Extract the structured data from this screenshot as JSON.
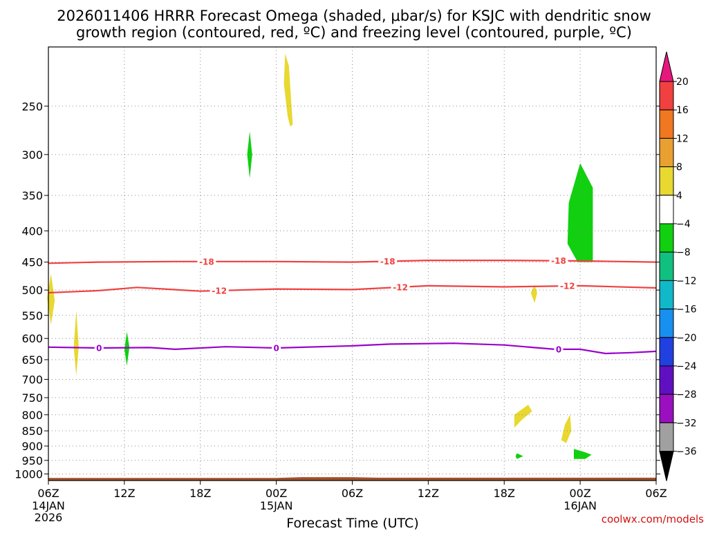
{
  "title_line1": "2026011406 HRRR Forecast Omega (shaded, μbar/s) for KSJC with dendritic snow",
  "title_line2": "growth region (contoured, red, ºC) and freezing level (contoured, purple, ºC)",
  "credit": "coolwx.com/models",
  "colors": {
    "temp_contour": "#f04040",
    "freezing_contour": "#9900cc",
    "terrain": "#a0522d",
    "grid": "#888888"
  },
  "chart_data": {
    "type": "heatmap",
    "title": "2026011406 HRRR Forecast Omega (shaded, μbar/s) for KSJC with dendritic snow growth region (contoured, red, ºC) and freezing level (contoured, purple, ºC)",
    "xlabel": "Forecast Time (UTC)",
    "x_unit": "forecast hour from 2026-01-14 06Z",
    "xlim": [
      0,
      48
    ],
    "x_ticks": [
      {
        "hour": 0,
        "label": "06Z",
        "sub1": "14JAN",
        "sub2": "2026"
      },
      {
        "hour": 6,
        "label": "12Z",
        "sub1": "",
        "sub2": ""
      },
      {
        "hour": 12,
        "label": "18Z",
        "sub1": "",
        "sub2": ""
      },
      {
        "hour": 18,
        "label": "00Z",
        "sub1": "15JAN",
        "sub2": ""
      },
      {
        "hour": 24,
        "label": "06Z",
        "sub1": "",
        "sub2": ""
      },
      {
        "hour": 30,
        "label": "12Z",
        "sub1": "",
        "sub2": ""
      },
      {
        "hour": 36,
        "label": "18Z",
        "sub1": "",
        "sub2": ""
      },
      {
        "hour": 42,
        "label": "00Z",
        "sub1": "16JAN",
        "sub2": ""
      },
      {
        "hour": 48,
        "label": "06Z",
        "sub1": "",
        "sub2": ""
      }
    ],
    "y_axis": "pressure (hPa), log scale, inverted",
    "ylim": [
      1025,
      200
    ],
    "y_ticks": [
      250,
      300,
      350,
      400,
      450,
      500,
      550,
      600,
      650,
      700,
      750,
      800,
      850,
      900,
      950,
      1000
    ],
    "grid": true,
    "colorbar": {
      "unit": "μbar/s",
      "labels": [
        "20",
        "16",
        "12",
        "8",
        "4",
        "−4",
        "−8",
        "−12",
        "−16",
        "−20",
        "−24",
        "−28",
        "−32",
        "−36"
      ],
      "bins": [
        {
          "lo": 20,
          "hi": null,
          "color": "#e8177d"
        },
        {
          "lo": 16,
          "hi": 20,
          "color": "#f04040"
        },
        {
          "lo": 12,
          "hi": 16,
          "color": "#f07820"
        },
        {
          "lo": 8,
          "hi": 12,
          "color": "#e8a030"
        },
        {
          "lo": 4,
          "hi": 8,
          "color": "#e8d830"
        },
        {
          "lo": -4,
          "hi": 4,
          "color": "#ffffff"
        },
        {
          "lo": -8,
          "hi": -4,
          "color": "#10d010"
        },
        {
          "lo": -12,
          "hi": -8,
          "color": "#10c080"
        },
        {
          "lo": -16,
          "hi": -12,
          "color": "#10b8c8"
        },
        {
          "lo": -20,
          "hi": -16,
          "color": "#1890f0"
        },
        {
          "lo": -24,
          "hi": -20,
          "color": "#2040e0"
        },
        {
          "lo": -28,
          "hi": -24,
          "color": "#6010c0"
        },
        {
          "lo": -32,
          "hi": -28,
          "color": "#9a10c0"
        },
        {
          "lo": -36,
          "hi": -32,
          "color": "#a0a0a0"
        },
        {
          "lo": null,
          "hi": -36,
          "color": "#000000"
        }
      ]
    },
    "contours": [
      {
        "name": "-18",
        "color_key": "temp_contour",
        "points": [
          [
            0,
            452
          ],
          [
            4,
            450
          ],
          [
            10,
            449
          ],
          [
            18,
            449
          ],
          [
            24,
            450
          ],
          [
            30,
            447
          ],
          [
            36,
            447
          ],
          [
            42,
            448
          ],
          [
            48,
            450
          ]
        ],
        "labels_at": [
          12.5,
          26.8,
          40.3
        ]
      },
      {
        "name": "-12",
        "color_key": "temp_contour",
        "points": [
          [
            0,
            505
          ],
          [
            4,
            501
          ],
          [
            7,
            495
          ],
          [
            12,
            502
          ],
          [
            18,
            498
          ],
          [
            24,
            499
          ],
          [
            30,
            492
          ],
          [
            36,
            494
          ],
          [
            42,
            492
          ],
          [
            48,
            496
          ]
        ],
        "labels_at": [
          13.5,
          27.8,
          41.0
        ]
      },
      {
        "name": "0",
        "color_key": "freezing_contour",
        "points": [
          [
            0,
            620
          ],
          [
            4,
            622
          ],
          [
            8,
            621
          ],
          [
            10,
            625
          ],
          [
            14,
            619
          ],
          [
            18,
            622
          ],
          [
            24,
            617
          ],
          [
            27,
            613
          ],
          [
            32,
            611
          ],
          [
            36,
            615
          ],
          [
            40,
            625
          ],
          [
            42,
            625
          ],
          [
            44,
            635
          ],
          [
            46,
            633
          ],
          [
            48,
            630
          ]
        ],
        "labels_at": [
          4.0,
          18.0,
          40.3
        ]
      }
    ],
    "omega_regions": [
      {
        "bin": "4 to 8",
        "points": [
          [
            18.7,
            205
          ],
          [
            19.0,
            215
          ],
          [
            19.3,
            268
          ],
          [
            19.1,
            270
          ],
          [
            18.9,
            260
          ],
          [
            18.6,
            230
          ]
        ]
      },
      {
        "bin": "-8 to -4",
        "points": [
          [
            15.9,
            275
          ],
          [
            16.1,
            300
          ],
          [
            15.9,
            328
          ],
          [
            15.7,
            300
          ]
        ]
      },
      {
        "bin": "-8 to -4",
        "points": [
          [
            42.0,
            310
          ],
          [
            43.0,
            340
          ],
          [
            43.0,
            450
          ],
          [
            41.8,
            450
          ],
          [
            41.0,
            420
          ],
          [
            41.1,
            360
          ]
        ]
      },
      {
        "bin": "4 to 8",
        "points": [
          [
            0.2,
            470
          ],
          [
            0.5,
            520
          ],
          [
            0.2,
            570
          ],
          [
            -0.1,
            515
          ]
        ]
      },
      {
        "bin": "4 to 8",
        "points": [
          [
            2.2,
            540
          ],
          [
            2.4,
            620
          ],
          [
            2.2,
            690
          ],
          [
            2.0,
            620
          ]
        ]
      },
      {
        "bin": "-8 to -4",
        "points": [
          [
            6.2,
            585
          ],
          [
            6.4,
            620
          ],
          [
            6.2,
            665
          ],
          [
            6.0,
            625
          ]
        ]
      },
      {
        "bin": "4 to 8",
        "points": [
          [
            38.4,
            490
          ],
          [
            38.6,
            505
          ],
          [
            38.4,
            525
          ],
          [
            38.1,
            505
          ]
        ]
      },
      {
        "bin": "4 to 8",
        "points": [
          [
            36.8,
            800
          ],
          [
            37.9,
            770
          ],
          [
            38.2,
            790
          ],
          [
            37.4,
            815
          ],
          [
            36.8,
            840
          ]
        ]
      },
      {
        "bin": "4 to 8",
        "points": [
          [
            40.8,
            830
          ],
          [
            41.2,
            800
          ],
          [
            41.3,
            850
          ],
          [
            40.9,
            890
          ],
          [
            40.5,
            880
          ]
        ]
      },
      {
        "bin": "-8 to -4",
        "points": [
          [
            37.0,
            925
          ],
          [
            37.5,
            935
          ],
          [
            37.0,
            945
          ],
          [
            36.9,
            935
          ]
        ]
      },
      {
        "bin": "-8 to -4",
        "points": [
          [
            41.5,
            910
          ],
          [
            42.3,
            920
          ],
          [
            42.9,
            930
          ],
          [
            42.4,
            945
          ],
          [
            41.5,
            945
          ]
        ]
      }
    ],
    "terrain": {
      "points": [
        [
          0,
          1015
        ],
        [
          18,
          1015
        ],
        [
          20,
          1012
        ],
        [
          24,
          1012
        ],
        [
          26,
          1014
        ],
        [
          48,
          1014
        ]
      ]
    }
  }
}
